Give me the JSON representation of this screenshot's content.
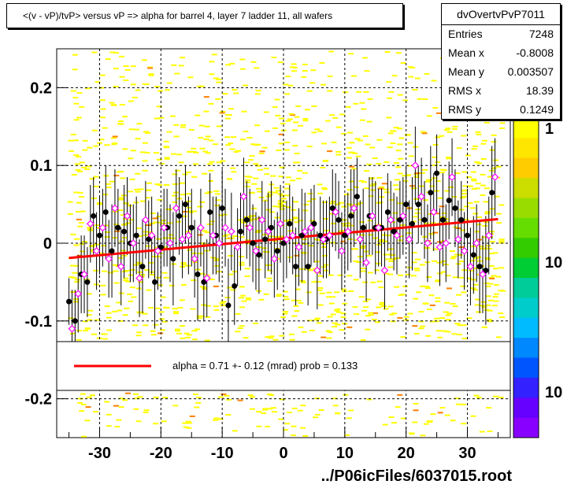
{
  "title": "<(v - vP)/tvP> versus   vP => alpha for barrel 4, layer 7 ladder 11, all wafers",
  "stats": {
    "name": "dvOvertvPvP7011",
    "rows": [
      {
        "key": "Entries",
        "value": "7248"
      },
      {
        "key": "Mean x",
        "value": "-0.8008"
      },
      {
        "key": "Mean y",
        "value": "0.003507"
      },
      {
        "key": "RMS x",
        "value": "18.39"
      },
      {
        "key": "RMS y",
        "value": "0.1249"
      }
    ]
  },
  "footer": "../P06icFiles/6037015.root",
  "fit_legend": "alpha =    0.71 +-  0.12 (mrad) prob = 0.133",
  "palette_labels": [
    "1",
    "10",
    "10"
  ],
  "colors": {
    "fit_line": "#ff0000",
    "black_points": "#000000",
    "open_points": "#ff00ff",
    "hist_cells": "#ffff00",
    "hist_cells_high": "#ff8000"
  },
  "chart_data": {
    "type": "scatter",
    "xlim": [
      -37,
      37
    ],
    "ylim": [
      -0.25,
      0.25
    ],
    "xticks": [
      -30,
      -20,
      -10,
      0,
      10,
      20,
      30
    ],
    "yticks": [
      -0.2,
      -0.1,
      0,
      0.1,
      0.2
    ],
    "ytick_labels": [
      "-0.2",
      "-0.1",
      "0",
      "0.1",
      "0.2"
    ],
    "grid": true,
    "fit": {
      "x": [
        -35,
        35
      ],
      "y": [
        -0.019,
        0.031
      ],
      "slope_mrad": 0.71,
      "error_mrad": 0.12,
      "prob": 0.133
    },
    "series": [
      {
        "marker": "filled-circle",
        "x": [
          -35,
          -34,
          -33,
          -32,
          -31,
          -30,
          -29,
          -28,
          -27,
          -26,
          -25,
          -24,
          -23,
          -22,
          -21,
          -20,
          -19,
          -18,
          -17,
          -16,
          -15,
          -14,
          -13,
          -12,
          -11,
          -10,
          -9,
          -8,
          -7,
          -6,
          -5,
          -4,
          -3,
          -2,
          -1,
          0,
          1,
          2,
          3,
          4,
          5,
          6,
          7,
          8,
          9,
          10,
          11,
          12,
          13,
          14,
          15,
          16,
          17,
          18,
          19,
          20,
          21,
          22,
          23,
          24,
          25,
          26,
          27,
          28,
          29,
          30,
          31,
          32,
          33,
          34
        ],
        "y": [
          -0.075,
          -0.1,
          -0.04,
          -0.05,
          0.035,
          0.01,
          0.04,
          -0.01,
          0.02,
          0.015,
          0.0,
          0.01,
          -0.03,
          0.005,
          -0.05,
          -0.005,
          0.02,
          -0.02,
          0.035,
          0.05,
          0.02,
          -0.04,
          -0.05,
          0.04,
          0.01,
          0.045,
          -0.08,
          -0.055,
          0.015,
          0.03,
          0.0,
          -0.015,
          0.005,
          0.02,
          -0.01,
          0.0,
          0.025,
          -0.03,
          0.01,
          -0.03,
          0.025,
          0.01,
          0.005,
          0.045,
          0.03,
          0.01,
          0.035,
          0.06,
          0.02,
          0.035,
          0.02,
          0.02,
          0.04,
          0.015,
          0.03,
          0.05,
          0.025,
          0.05,
          0.03,
          0.065,
          0.09,
          0.03,
          0.055,
          0.045,
          0.03,
          0.01,
          -0.015,
          -0.03,
          -0.035,
          0.065
        ],
        "err": [
          0.03,
          0.04,
          0.05,
          0.045,
          0.05,
          0.05,
          0.06,
          0.06,
          0.05,
          0.06,
          0.05,
          0.05,
          0.06,
          0.05,
          0.06,
          0.05,
          0.05,
          0.06,
          0.05,
          0.05,
          0.05,
          0.06,
          0.05,
          0.05,
          0.05,
          0.05,
          0.06,
          0.05,
          0.05,
          0.05,
          0.05,
          0.05,
          0.05,
          0.06,
          0.05,
          0.05,
          0.05,
          0.05,
          0.06,
          0.05,
          0.05,
          0.05,
          0.05,
          0.05,
          0.05,
          0.05,
          0.06,
          0.05,
          0.05,
          0.05,
          0.06,
          0.05,
          0.05,
          0.05,
          0.05,
          0.05,
          0.06,
          0.05,
          0.05,
          0.06,
          0.05,
          0.06,
          0.05,
          0.05,
          0.05,
          0.06,
          0.05,
          0.06,
          0.07,
          0.06
        ]
      },
      {
        "marker": "open-diamond",
        "x": [
          -34.5,
          -33.5,
          -32.5,
          -31.5,
          -30.5,
          -29.5,
          -28.5,
          -27.5,
          -26.5,
          -25.5,
          -24.5,
          -23.5,
          -22.5,
          -21.5,
          -20.5,
          -19.5,
          -18.5,
          -17.5,
          -16.5,
          -15.5,
          -14.5,
          -13.5,
          -12.5,
          -11.5,
          -10.5,
          -9.5,
          -8.5,
          -7.5,
          -6.5,
          -5.5,
          -4.5,
          -3.5,
          -2.5,
          -1.5,
          -0.5,
          0.5,
          1.5,
          2.5,
          3.5,
          4.5,
          5.5,
          6.5,
          7.5,
          8.5,
          9.5,
          10.5,
          11.5,
          12.5,
          13.5,
          14.5,
          15.5,
          16.5,
          17.5,
          18.5,
          19.5,
          20.5,
          21.5,
          22.5,
          23.5,
          24.5,
          25.5,
          26.5,
          27.5,
          28.5,
          29.5,
          30.5,
          31.5,
          32.5,
          33.5,
          34.5
        ],
        "y": [
          -0.11,
          -0.065,
          -0.04,
          0.025,
          -0.01,
          0.02,
          -0.02,
          0.045,
          -0.03,
          0.035,
          0.0,
          -0.045,
          0.03,
          0.01,
          -0.01,
          0.02,
          0.0,
          0.045,
          0.005,
          0.01,
          -0.02,
          0.02,
          -0.045,
          0.01,
          0.0,
          0.02,
          0.015,
          -0.005,
          0.06,
          0.02,
          -0.01,
          0.03,
          0.015,
          -0.02,
          0.025,
          0.005,
          0.01,
          -0.005,
          0.015,
          0.02,
          -0.035,
          0.005,
          0.01,
          0.04,
          -0.01,
          0.015,
          0.045,
          0.005,
          -0.025,
          0.035,
          0.02,
          -0.035,
          0.03,
          0.01,
          0.035,
          0.005,
          0.1,
          0.06,
          0.0,
          0.04,
          -0.005,
          0.0,
          0.085,
          0.005,
          -0.01,
          -0.03,
          0.0,
          -0.04,
          0.01,
          0.085
        ],
        "err": [
          0.05,
          0.05,
          0.05,
          0.05,
          0.05,
          0.05,
          0.05,
          0.05,
          0.05,
          0.05,
          0.05,
          0.05,
          0.05,
          0.05,
          0.05,
          0.05,
          0.05,
          0.05,
          0.05,
          0.05,
          0.05,
          0.05,
          0.05,
          0.05,
          0.05,
          0.05,
          0.05,
          0.05,
          0.05,
          0.05,
          0.05,
          0.05,
          0.05,
          0.05,
          0.05,
          0.05,
          0.05,
          0.05,
          0.05,
          0.05,
          0.05,
          0.05,
          0.05,
          0.05,
          0.05,
          0.05,
          0.05,
          0.05,
          0.05,
          0.05,
          0.05,
          0.05,
          0.05,
          0.05,
          0.05,
          0.05,
          0.05,
          0.05,
          0.05,
          0.05,
          0.05,
          0.05,
          0.05,
          0.05,
          0.05,
          0.05,
          0.05,
          0.05,
          0.05,
          0.05
        ]
      }
    ]
  }
}
